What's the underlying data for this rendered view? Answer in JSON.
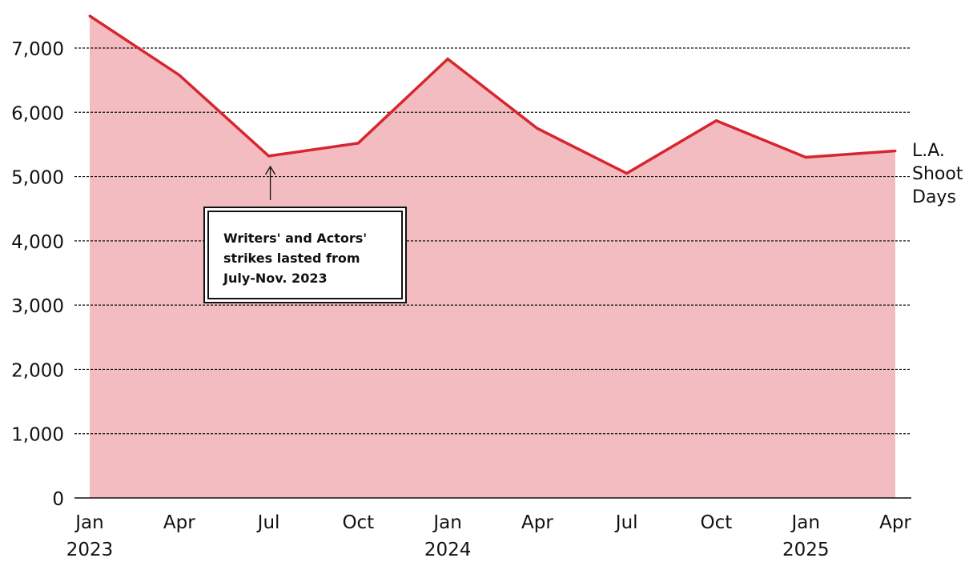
{
  "chart_data": {
    "type": "area",
    "x": [
      "Jan 2023",
      "Apr 2023",
      "Jul 2023",
      "Oct 2023",
      "Jan 2024",
      "Apr 2024",
      "Jul 2024",
      "Oct 2024",
      "Jan 2025",
      "Apr 2025"
    ],
    "series": [
      {
        "name": "L.A. Shoot Days",
        "values": [
          7500,
          6580,
          5320,
          5520,
          6830,
          5750,
          5050,
          5870,
          5300,
          5400
        ]
      }
    ],
    "x_tick_labels": [
      {
        "month": "Jan",
        "year": "2023"
      },
      {
        "month": "Apr",
        "year": ""
      },
      {
        "month": "Jul",
        "year": ""
      },
      {
        "month": "Oct",
        "year": ""
      },
      {
        "month": "Jan",
        "year": "2024"
      },
      {
        "month": "Apr",
        "year": ""
      },
      {
        "month": "Jul",
        "year": ""
      },
      {
        "month": "Oct",
        "year": ""
      },
      {
        "month": "Jan",
        "year": "2025"
      },
      {
        "month": "Apr",
        "year": ""
      }
    ],
    "y_ticks": [
      0,
      1000,
      2000,
      3000,
      4000,
      5000,
      6000,
      7000
    ],
    "y_tick_labels": [
      "0",
      "1,000",
      "2,000",
      "3,000",
      "4,000",
      "5,000",
      "6,000",
      "7,000"
    ],
    "ylim": [
      0,
      7600
    ],
    "grid": true,
    "legend": "end-of-line label",
    "series_label_lines": [
      "L.A.",
      "Shoot",
      "Days"
    ],
    "annotation": {
      "text": "Writers' and Actors'\nstrikes lasted from\nJuly-Nov. 2023",
      "points_to": "Jul 2023"
    },
    "colors": {
      "line": "#d7262f",
      "area": "#f3bcc0",
      "grid": "#111111",
      "text": "#111111"
    }
  }
}
